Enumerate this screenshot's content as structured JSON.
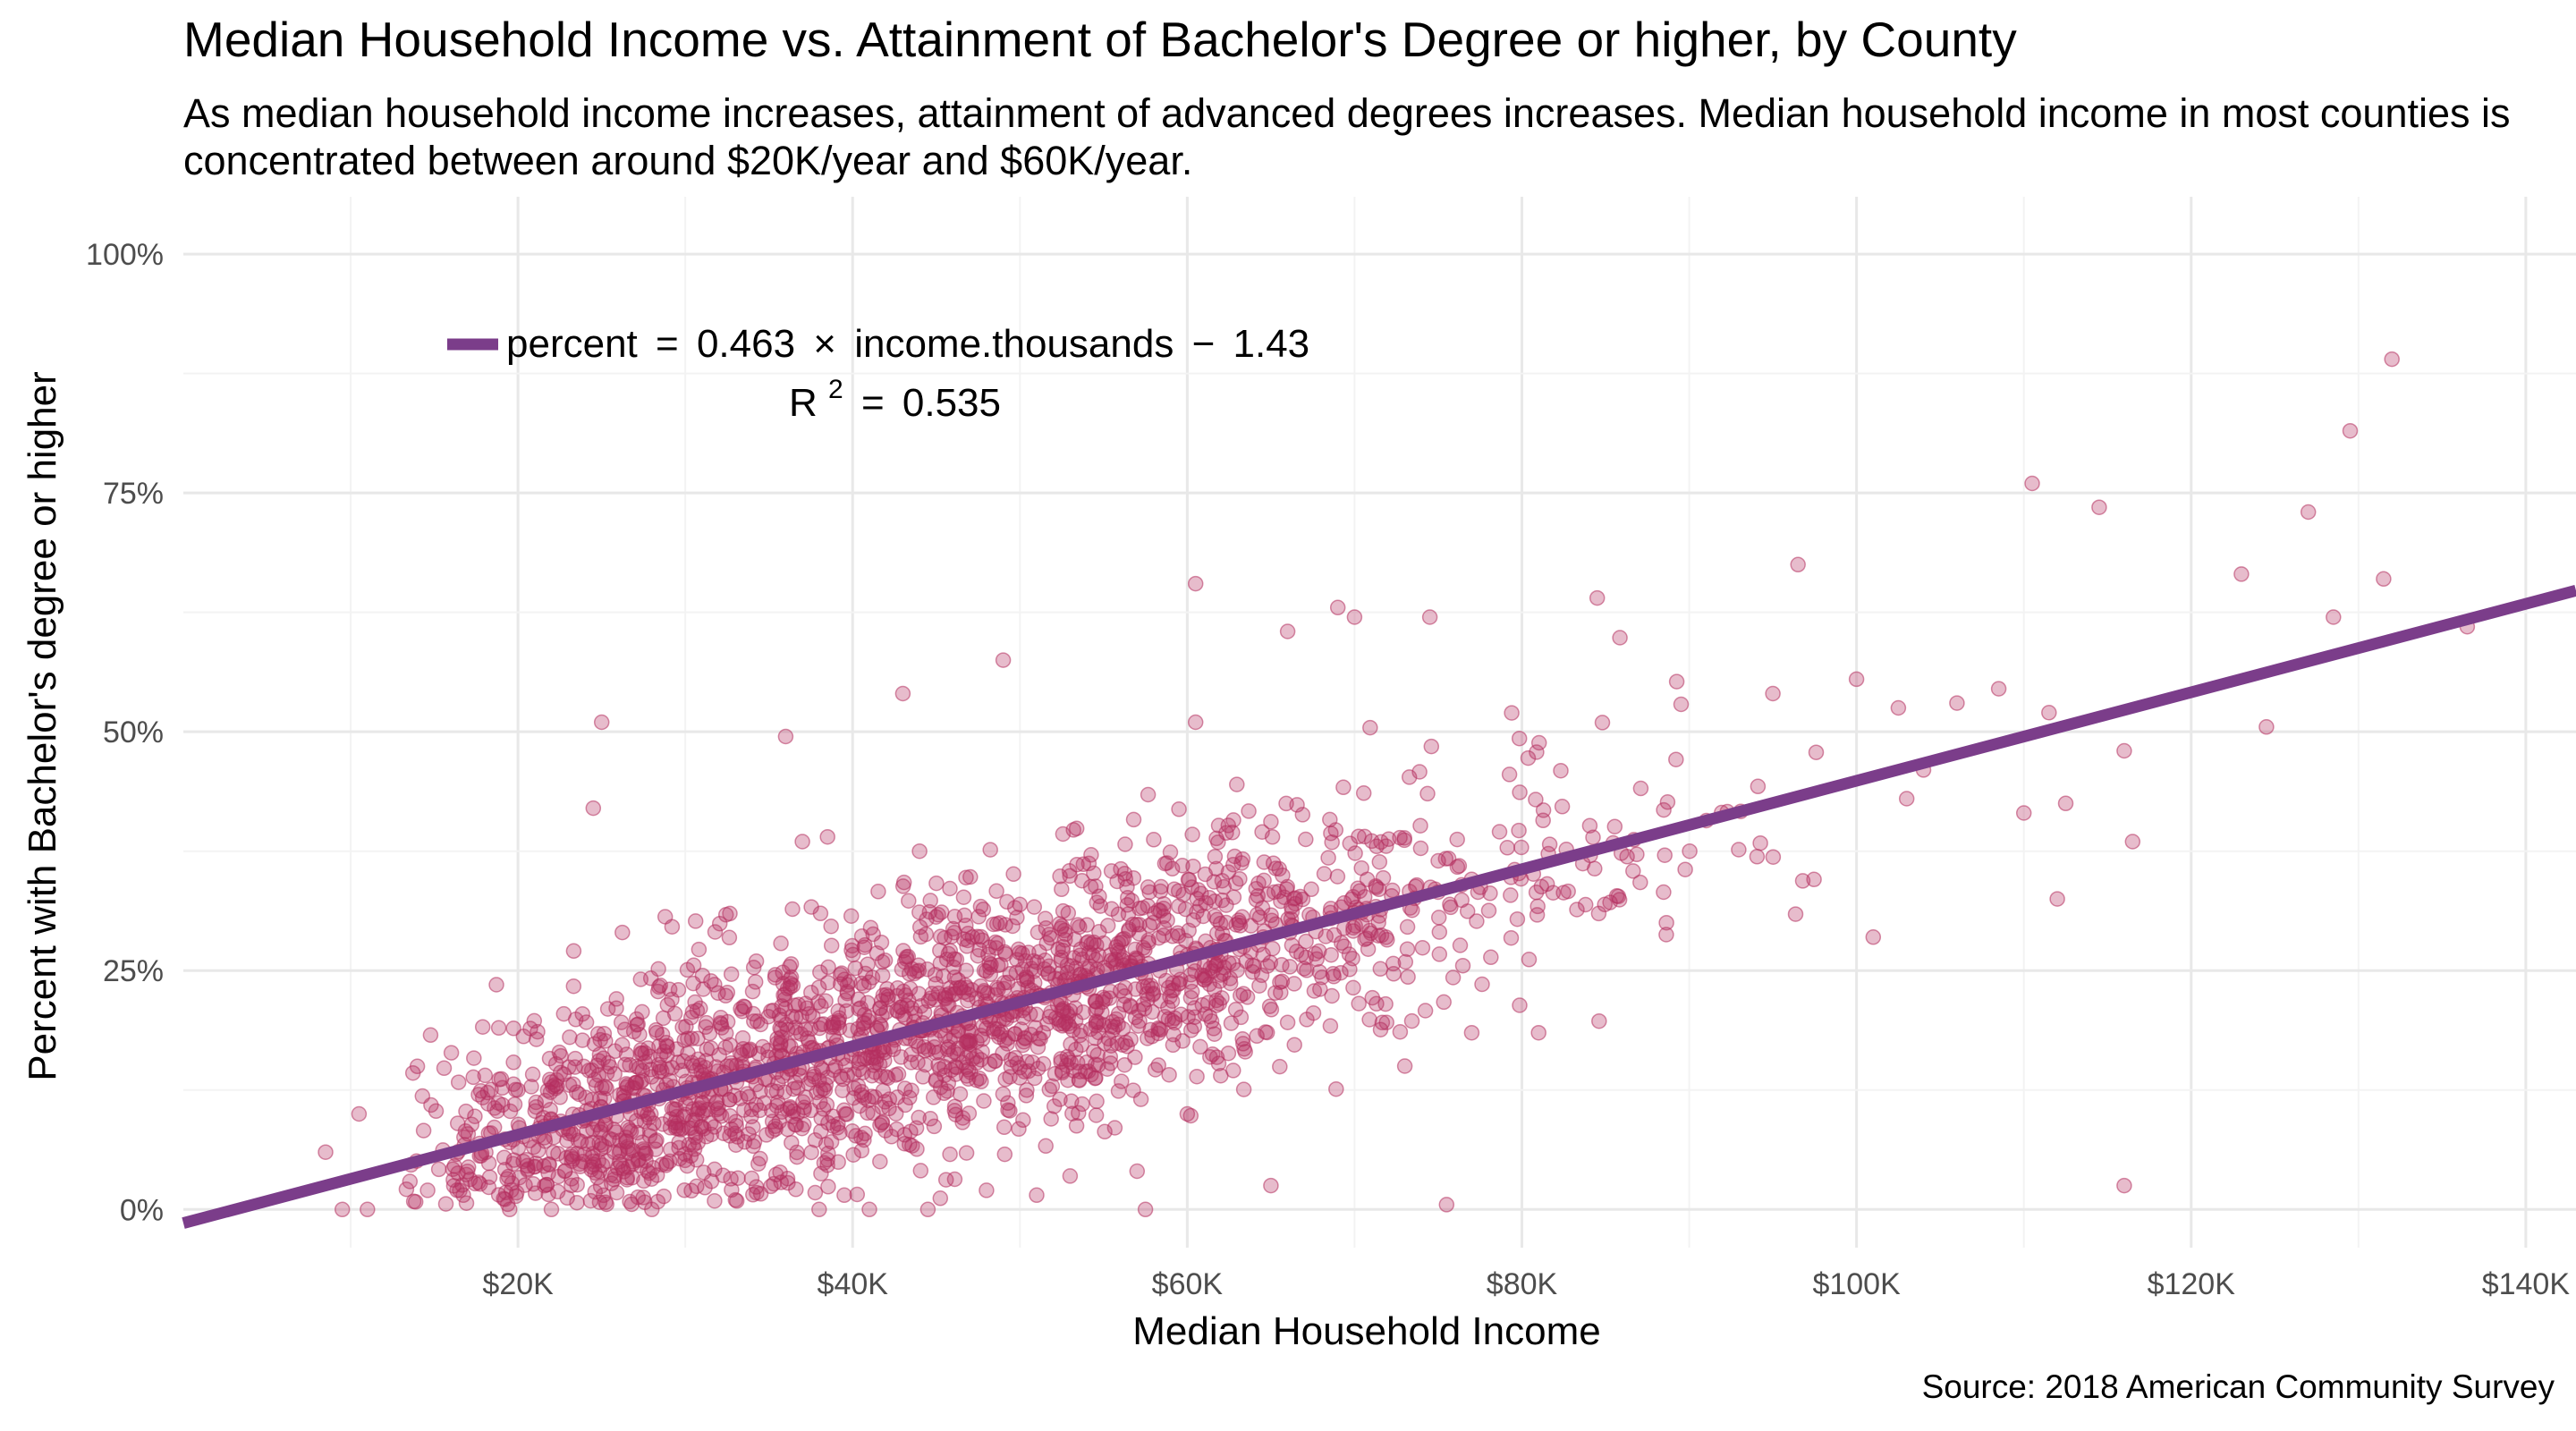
{
  "chart_data": {
    "type": "scatter",
    "title": "Median Household Income vs. Attainment of Bachelor's Degree or higher, by County",
    "subtitle": "As median household income increases, attainment of advanced degrees increases. Median household income in most counties is concentrated between around $20K/year and $60K/year.",
    "xlabel": "Median Household Income",
    "ylabel": "Percent with Bachelor's degree or higher",
    "caption": "Source: 2018 American Community Survey",
    "xlim": [
      0,
      143
    ],
    "ylim": [
      -4,
      106
    ],
    "x_ticks": [
      20,
      40,
      60,
      80,
      100,
      120,
      140
    ],
    "x_tick_labels": [
      "$20K",
      "$40K",
      "$60K",
      "$80K",
      "$100K",
      "$120K",
      "$140K"
    ],
    "y_ticks": [
      0,
      25,
      50,
      75,
      100
    ],
    "y_tick_labels": [
      "0%",
      "25%",
      "50%",
      "75%",
      "100%"
    ],
    "grid": true,
    "point_color": "#b5305f",
    "line_color": "#7b3d8a",
    "regression": {
      "slope": 0.463,
      "intercept": -1.43,
      "equation_lhs": "percent",
      "equation_eq": "=",
      "equation_coef": "0.463",
      "equation_times": "×",
      "equation_var": "income.thousands",
      "equation_minus": "−",
      "equation_const": "1.43",
      "r2_base": "R",
      "r2_sup": "2",
      "r2_eq": "=",
      "r2_value": "0.535"
    },
    "outliers": [
      [
        8.5,
        6
      ],
      [
        9.5,
        0
      ],
      [
        10.5,
        10
      ],
      [
        11,
        0
      ],
      [
        25,
        51
      ],
      [
        24.5,
        42
      ],
      [
        36,
        49.5
      ],
      [
        49,
        57.5
      ],
      [
        43,
        54
      ],
      [
        60.5,
        65.5
      ],
      [
        60.5,
        51
      ],
      [
        66,
        60.5
      ],
      [
        69,
        63
      ],
      [
        70,
        62
      ],
      [
        74.5,
        62
      ],
      [
        84.5,
        64
      ],
      [
        96.5,
        67.5
      ],
      [
        95,
        54
      ],
      [
        100,
        55.5
      ],
      [
        102.5,
        52.5
      ],
      [
        106,
        53
      ],
      [
        108.5,
        54.5
      ],
      [
        110.5,
        76
      ],
      [
        114.5,
        73.5
      ],
      [
        111.5,
        52
      ],
      [
        112,
        32.5
      ],
      [
        112.5,
        42.5
      ],
      [
        116,
        48
      ],
      [
        116.5,
        38.5
      ],
      [
        116,
        2.5
      ],
      [
        123,
        66.5
      ],
      [
        124.5,
        50.5
      ],
      [
        127,
        73
      ],
      [
        128.5,
        62
      ],
      [
        129.5,
        81.5
      ],
      [
        131.5,
        66
      ],
      [
        132,
        89
      ],
      [
        136.5,
        61
      ],
      [
        110,
        41.5
      ],
      [
        101,
        28.5
      ],
      [
        103,
        43
      ],
      [
        104,
        46
      ],
      [
        38.5,
        39
      ],
      [
        37,
        38.5
      ],
      [
        44,
        37.5
      ],
      [
        65,
        2.5
      ],
      [
        75.5,
        0.5
      ],
      [
        38,
        0
      ],
      [
        41,
        0
      ],
      [
        44.5,
        0
      ],
      [
        57.5,
        0
      ],
      [
        57,
        4
      ],
      [
        60,
        10
      ],
      [
        62,
        14
      ],
      [
        73,
        15
      ],
      [
        77,
        18.5
      ],
      [
        81,
        18.5
      ],
      [
        19.5,
        0
      ],
      [
        22,
        0
      ],
      [
        28,
        0
      ],
      [
        33,
        1
      ],
      [
        39.5,
        1.5
      ],
      [
        48,
        2
      ],
      [
        51,
        1.5
      ],
      [
        53,
        3.5
      ]
    ]
  }
}
